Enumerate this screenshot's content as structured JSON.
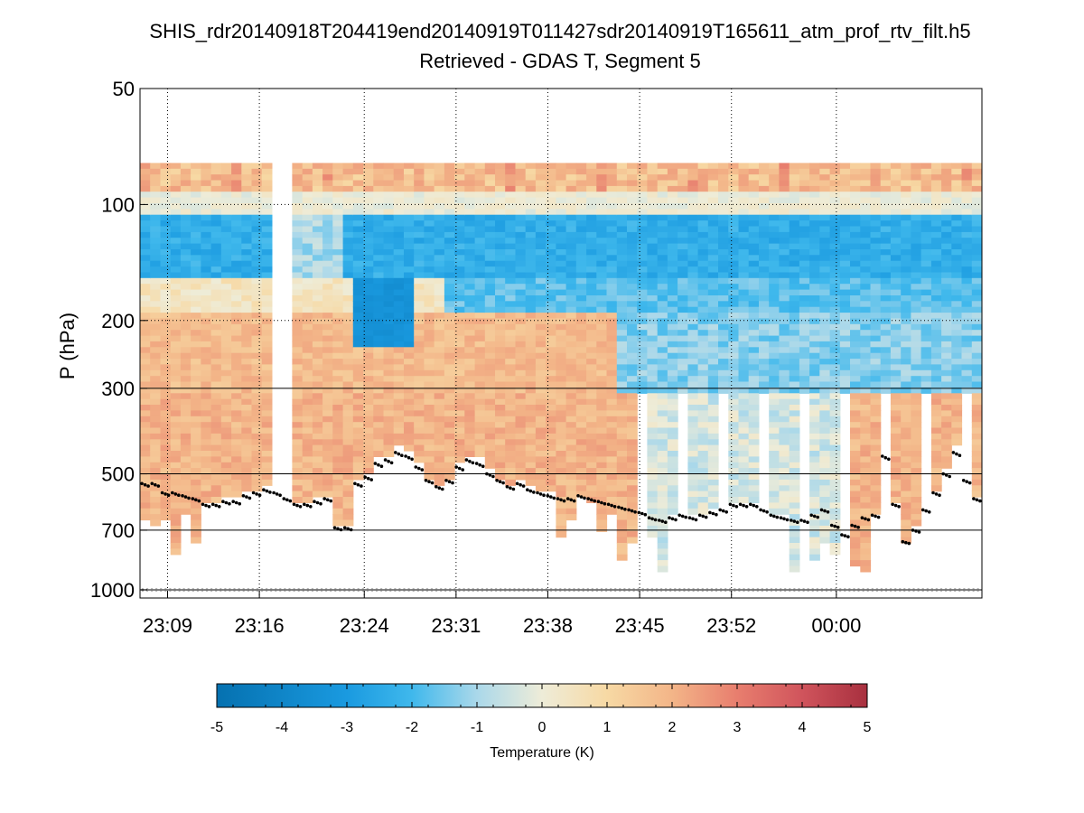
{
  "chart_data": {
    "type": "heatmap",
    "title": "SHIS_rdr20140918T204419end20140919T011427sdr20140919T165611_atm_prof_rtv_filt.h5",
    "subtitle": "Retrieved - GDAS T, Segment 5",
    "ylabel": "P (hPa)",
    "xlabel": "",
    "y_scale": "log",
    "y_reversed": true,
    "ylim": [
      50,
      1050
    ],
    "y_ticks": [
      50,
      100,
      200,
      300,
      500,
      700,
      1000
    ],
    "y_tick_labels": [
      "50",
      "100",
      "200",
      "300",
      "500",
      "700",
      "1000"
    ],
    "y_solid_gridlines": [
      300,
      500,
      700,
      1000
    ],
    "y_dotted_gridlines": [
      100,
      200
    ],
    "x_unit": "minutes after 23:00",
    "xlim": [
      6.9,
      71.1
    ],
    "x_ticks": [
      9,
      16,
      24,
      31,
      38,
      45,
      52,
      60
    ],
    "x_tick_labels": [
      "23:09",
      "23:16",
      "23:24",
      "23:31",
      "23:38",
      "23:45",
      "23:52",
      "00:00"
    ],
    "grid": true,
    "colorbar": {
      "label": "Temperature (K)",
      "range": [
        -5,
        5
      ],
      "ticks": [
        "-5",
        "-4",
        "-3",
        "-2",
        "-1",
        "0",
        "1",
        "2",
        "3",
        "4",
        "5"
      ],
      "colormap": [
        "#0571b0",
        "#92c5de",
        "#f7f7f7",
        "#f4a582",
        "#ca0020"
      ]
    },
    "cloud_top_hPa": [
      530,
      530,
      560,
      560,
      570,
      580,
      600,
      600,
      590,
      590,
      570,
      560,
      550,
      560,
      580,
      600,
      600,
      590,
      580,
      690,
      690,
      530,
      510,
      470,
      460,
      440,
      450,
      480,
      520,
      540,
      520,
      480,
      460,
      470,
      500,
      520,
      540,
      530,
      550,
      560,
      570,
      580,
      580,
      570,
      580,
      590,
      600,
      610,
      620,
      630,
      650,
      660,
      650,
      640,
      650,
      640,
      630,
      620,
      600,
      600,
      600,
      620,
      640,
      650,
      660,
      660,
      640,
      620,
      680,
      720,
      680,
      650,
      640,
      450,
      600,
      750,
      700,
      620,
      560,
      500,
      440,
      520,
      580
    ],
    "surface_hPa": 1000,
    "heatmap_note": "temperature difference field (Retrieved minus GDAS) by time and pressure; white where no retrieval"
  }
}
